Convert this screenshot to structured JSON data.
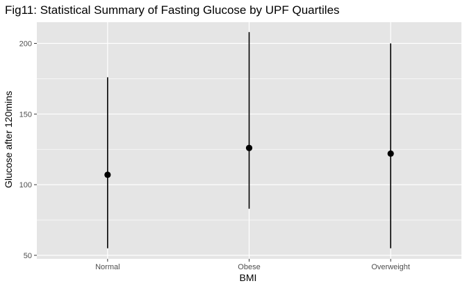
{
  "chart_data": {
    "type": "pointrange",
    "title": "Fig11: Statistical Summary of Fasting Glucose by UPF Quartiles",
    "xlabel": "BMI",
    "ylabel": "Glucose after 120mins",
    "categories": [
      "Normal",
      "Obese",
      "Overweight"
    ],
    "points": [
      {
        "category": "Normal",
        "y": 107,
        "ymin": 55,
        "ymax": 176
      },
      {
        "category": "Obese",
        "y": 126,
        "ymin": 83,
        "ymax": 208
      },
      {
        "category": "Overweight",
        "y": 122,
        "ymin": 55,
        "ymax": 200
      }
    ],
    "ylim": [
      47.5,
      215
    ],
    "yticks": [
      50,
      100,
      150,
      200
    ],
    "yticks_labels": [
      "50",
      "100",
      "150",
      "200"
    ],
    "grid": true,
    "legend": "none",
    "colors": {
      "panel": "#e5e5e5",
      "grid": "#ffffff",
      "marks": "#000000",
      "text": "#4d4d4d"
    }
  }
}
